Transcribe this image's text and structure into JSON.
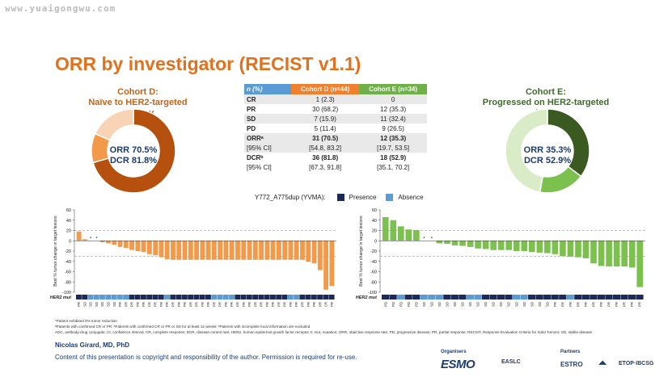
{
  "watermark": "www.yuaigongwu.com",
  "title": "ORR by investigator (RECIST v1.1)",
  "cohort_d": {
    "title_line1": "Cohort D:",
    "title_line2": "Naïve to HER2-targeted therapy",
    "orr": "ORR 70.5%",
    "dcr": "DCR 81.8%"
  },
  "cohort_e": {
    "title_line1": "Cohort E:",
    "title_line2": "Progressed on HER2-targeted ADCs",
    "orr": "ORR 35.3%",
    "dcr": "DCR 52.9%"
  },
  "colors": {
    "title": "#e2711d",
    "cohort_d_title": "#c0651a",
    "cohort_e_title": "#3e6b2a",
    "orange_header": "#f07f2e",
    "green_header": "#6fb04a",
    "blue_header": "#5b9bd5",
    "bar_d": "#f39a4a",
    "bar_e": "#7cc04e",
    "presence": "#1c2a5a",
    "absence": "#5b9bd5",
    "text_navy": "#1c3c6e"
  },
  "table": {
    "headers": [
      "n (%)",
      "Cohort D (n=44)",
      "Cohort E (n=34)"
    ],
    "rows": [
      {
        "label": "CR",
        "d": "1 (2.3)",
        "e": "0"
      },
      {
        "label": "PR",
        "d": "30 (68.2)",
        "e": "12 (35.3)"
      },
      {
        "label": "SD",
        "d": "7 (15.9)",
        "e": "11 (32.4)"
      },
      {
        "label": "PD",
        "d": "5 (11.4)",
        "e": "9 (26.5)"
      },
      {
        "label": "ORRᵃ",
        "d": "31 (70.5)",
        "e": "12 (35.3)"
      },
      {
        "label": "[95% CI]",
        "d": "[54.8, 83.2]",
        "e": "[19.7, 53.5]"
      },
      {
        "label": "DCRᵇ",
        "d": "36 (81.8)",
        "e": "18 (52.9)"
      },
      {
        "label": "[95% CI]",
        "d": "[67.3, 91.8]",
        "e": "[35.1, 70.2]"
      }
    ]
  },
  "legend": {
    "label": "Y772_A775dup (YVMA):",
    "presence": "Presence",
    "absence": "Absence"
  },
  "chart_data": [
    {
      "type": "pie",
      "name": "cohort-d-donut",
      "slices": [
        {
          "label": "ORR",
          "value": 70.5,
          "color": "#b5500f"
        },
        {
          "label": "SD",
          "value": 11.3,
          "color": "#f39a4a"
        },
        {
          "label": "Other",
          "value": 18.2,
          "color": "#f9d3b6"
        }
      ]
    },
    {
      "type": "pie",
      "name": "cohort-e-donut",
      "slices": [
        {
          "label": "ORR",
          "value": 35.3,
          "color": "#3a5a22"
        },
        {
          "label": "SD",
          "value": 17.6,
          "color": "#7cc04e"
        },
        {
          "label": "Other",
          "value": 47.1,
          "color": "#d9ecc7"
        }
      ]
    },
    {
      "type": "bar",
      "name": "cohort-d-waterfall",
      "ylabel": "Best % tumor change in target lesions",
      "ylim": [
        -100,
        60
      ],
      "yticks": [
        60,
        40,
        20,
        0,
        -20,
        -40,
        -60,
        -80,
        -100
      ],
      "reference_lines": [
        20,
        -30
      ],
      "row_label": "HER2 mut",
      "values": [
        18,
        3,
        0,
        0,
        -3,
        -5,
        -8,
        -12,
        -14,
        -18,
        -20,
        -22,
        -26,
        -28,
        -32,
        -36,
        -37,
        -37,
        -37,
        -37,
        -37,
        -37,
        -37,
        -37,
        -37,
        -37,
        -37,
        -37,
        -37,
        -37,
        -37,
        -37,
        -37,
        -37,
        -37,
        -37,
        -37,
        -37,
        -37,
        -41,
        -44,
        -57,
        -95,
        -88
      ],
      "markers": [
        2,
        3
      ],
      "mutation": [
        "P",
        "P",
        "A",
        "A",
        "A",
        "A",
        "A",
        "A",
        "A",
        "P",
        "P",
        "P",
        "P",
        "P",
        "P",
        "A",
        "P",
        "P",
        "P",
        "P",
        "P",
        "P",
        "P",
        "A",
        "A",
        "A",
        "A",
        "P",
        "P",
        "P",
        "P",
        "P",
        "P",
        "P",
        "P",
        "P",
        "A",
        "A",
        "P",
        "P",
        "P",
        "P",
        "P",
        "P"
      ],
      "x_labels": [
        "PR",
        "SD",
        "SD",
        "SD",
        "SD",
        "SD",
        "SD",
        "PR",
        "PR",
        "PR",
        "PR",
        "PR",
        "PR",
        "PR",
        "PR",
        "PR",
        "PR",
        "PR",
        "PR",
        "PR",
        "PR",
        "PR",
        "PR",
        "PR",
        "PR",
        "PR",
        "PR",
        "PR",
        "PR",
        "PR",
        "PR",
        "PR",
        "PR",
        "PR",
        "PR",
        "PR",
        "PR",
        "PR",
        "PR",
        "PR",
        "PR",
        "PR",
        "CR",
        "PR"
      ]
    },
    {
      "type": "bar",
      "name": "cohort-e-waterfall",
      "ylabel": "Best % tumor change in target lesions",
      "ylim": [
        -100,
        60
      ],
      "yticks": [
        60,
        40,
        20,
        0,
        -20,
        -40,
        -60,
        -80,
        -100
      ],
      "reference_lines": [
        20,
        -30
      ],
      "row_label": "HER2 mut",
      "values": [
        46,
        40,
        28,
        22,
        21,
        0,
        0,
        -5,
        -6,
        -9,
        -10,
        -12,
        -15,
        -16,
        -18,
        -18,
        -18,
        -20,
        -20,
        -22,
        -23,
        -24,
        -26,
        -30,
        -31,
        -32,
        -34,
        -44,
        -49,
        -50,
        -50,
        -50,
        -52,
        -90
      ],
      "markers": [
        5,
        6
      ],
      "mutation": [
        "P",
        "P",
        "A",
        "P",
        "P",
        "A",
        "A",
        "A",
        "P",
        "P",
        "P",
        "A",
        "A",
        "P",
        "P",
        "P",
        "P",
        "A",
        "A",
        "P",
        "P",
        "P",
        "P",
        "P",
        "A",
        "P",
        "P",
        "P",
        "P",
        "P",
        "P",
        "P",
        "P",
        "P"
      ],
      "x_labels": [
        "PD",
        "PD",
        "PD",
        "PD",
        "PD",
        "SD",
        "SD",
        "SD",
        "SD",
        "SD",
        "SD",
        "SD",
        "SD",
        "SD",
        "SD",
        "SD",
        "SD",
        "SD",
        "SD",
        "SD",
        "SD",
        "SD",
        "PR",
        "PR",
        "PR",
        "PR",
        "PR",
        "PR",
        "PR",
        "PR",
        "PR",
        "PR",
        "PR",
        "PR"
      ]
    }
  ],
  "footnotes": [
    "*Patient exhibited 0% tumor reduction",
    "ᵃPatients with confirmed CR or PR; ᵇPatients with confirmed CR or PR or SD for at least 12 weeks; ᶜPatients with incomplete local information are excluded",
    "ADC, antibody-drug conjugate; CI, confidence interval; CR, complete response; DCR, disease control rate; HER2, human epidermal growth factor receptor 2; mut, mutation; ORR, objective response rate; PD, progressive disease; PR, partial response; RECIST, Response Evaluation Criteria for Solid Tumors; SD, stable disease"
  ],
  "presenter": "Nicolas Girard, MD, PhD",
  "copyright": "Content of this presentation is copyright and responsibility of the author. Permission is required for re-use.",
  "organisers_label": "Organisers",
  "partners_label": "Partners",
  "logos": [
    "ESMO",
    "EASLC",
    "ESTRO",
    "ETOP·IBCSG"
  ]
}
